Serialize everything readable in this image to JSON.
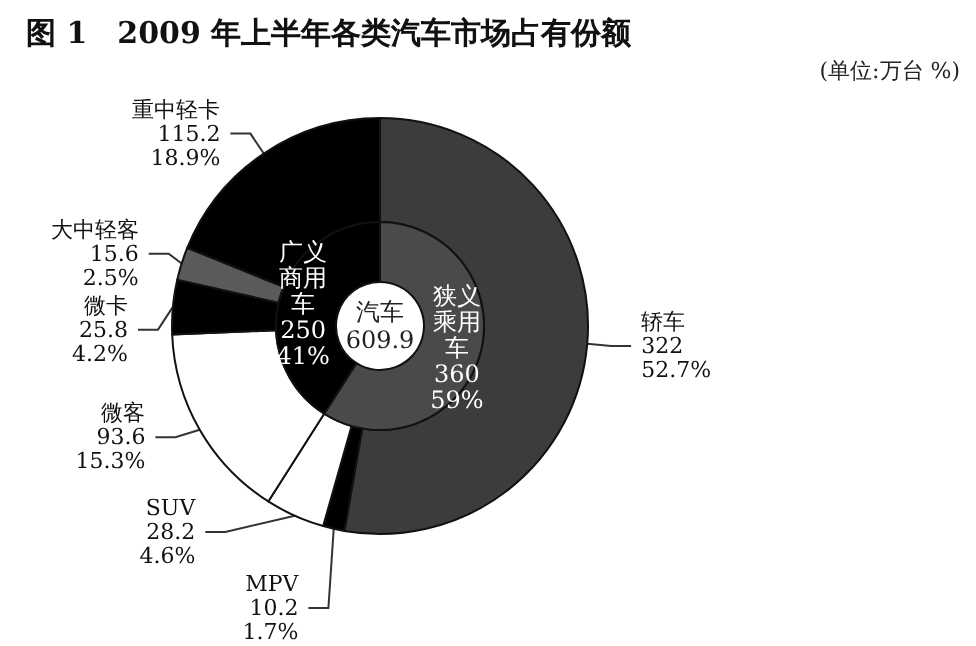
{
  "chart_data": [
    {
      "type": "donut",
      "title": "图 1　2009 年上半年各类汽车市场占有份额",
      "annotations": [
        "(单位:万台 %)"
      ],
      "categories": [
        "轿车",
        "MPV",
        "SUV",
        "微客",
        "微卡",
        "大中轻客",
        "重中轻卡"
      ],
      "values": [
        322,
        10.2,
        28.2,
        93.6,
        25.8,
        15.6,
        115.2
      ],
      "value_labels": [
        "322\n52.7%",
        "10.2\n1.7%",
        "28.2\n4.6%",
        "93.6\n15.3%",
        "25.8\n4.2%",
        "15.6\n2.5%",
        "115.2\n18.9%"
      ],
      "colors": [
        "#3c3c3c",
        "#000000",
        "#ffffff",
        "#ffffff",
        "#000000",
        "#5a5a5a",
        "#000000"
      ]
    },
    {
      "type": "donut",
      "annotations": [
        "汽车\n609.9"
      ],
      "categories": [
        "狭义乘用车",
        "广义商用车"
      ],
      "values": [
        360,
        250
      ],
      "value_labels": [
        "360\n59%",
        "250\n41%"
      ],
      "colors": [
        "#4a4a4a",
        "#000000"
      ]
    }
  ]
}
